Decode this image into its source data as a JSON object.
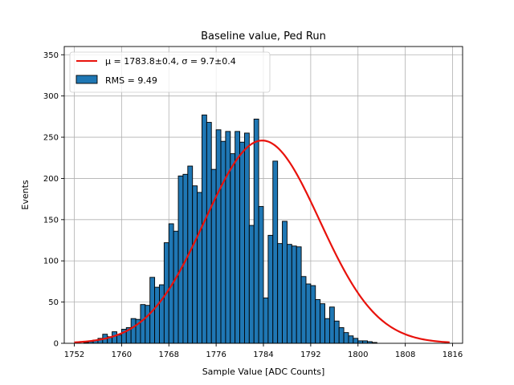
{
  "chart_data": {
    "type": "bar",
    "title": "Baseline value, Ped Run",
    "xlabel": "Sample Value [ADC Counts]",
    "ylabel": "Events",
    "xlim": [
      1750.3,
      1817.7
    ],
    "ylim": [
      0,
      360
    ],
    "x_ticks": [
      1752,
      1760,
      1768,
      1776,
      1784,
      1792,
      1800,
      1808,
      1816
    ],
    "y_ticks": [
      0,
      50,
      100,
      150,
      200,
      250,
      300,
      350
    ],
    "grid": true,
    "legend_position": "top-left",
    "histogram": {
      "name": "RMS = 9.49",
      "color": "#1f77b4",
      "bin_start": 1752.0,
      "bin_width": 0.8,
      "counts": [
        0,
        0,
        1,
        2,
        4,
        6,
        11,
        8,
        14,
        10,
        17,
        19,
        30,
        29,
        47,
        46,
        80,
        68,
        71,
        122,
        145,
        136,
        203,
        205,
        215,
        191,
        183,
        277,
        268,
        211,
        259,
        245,
        257,
        230,
        257,
        244,
        255,
        143,
        272,
        166,
        55,
        131,
        221,
        121,
        148,
        120,
        118,
        117,
        81,
        72,
        70,
        53,
        48,
        30,
        44,
        27,
        19,
        13,
        9,
        6,
        3,
        3,
        2,
        1,
        0
      ]
    },
    "fit": {
      "label": "μ = 1783.8±0.4, σ = 9.7±0.4",
      "color": "#e8120c",
      "mu": 1783.8,
      "sigma": 9.7,
      "amplitude": 246,
      "x_range": [
        1752,
        1815.5
      ]
    }
  },
  "legend": {
    "fit_label": "μ = 1783.8±0.4, σ = 9.7±0.4",
    "hist_label": "RMS = 9.49"
  }
}
